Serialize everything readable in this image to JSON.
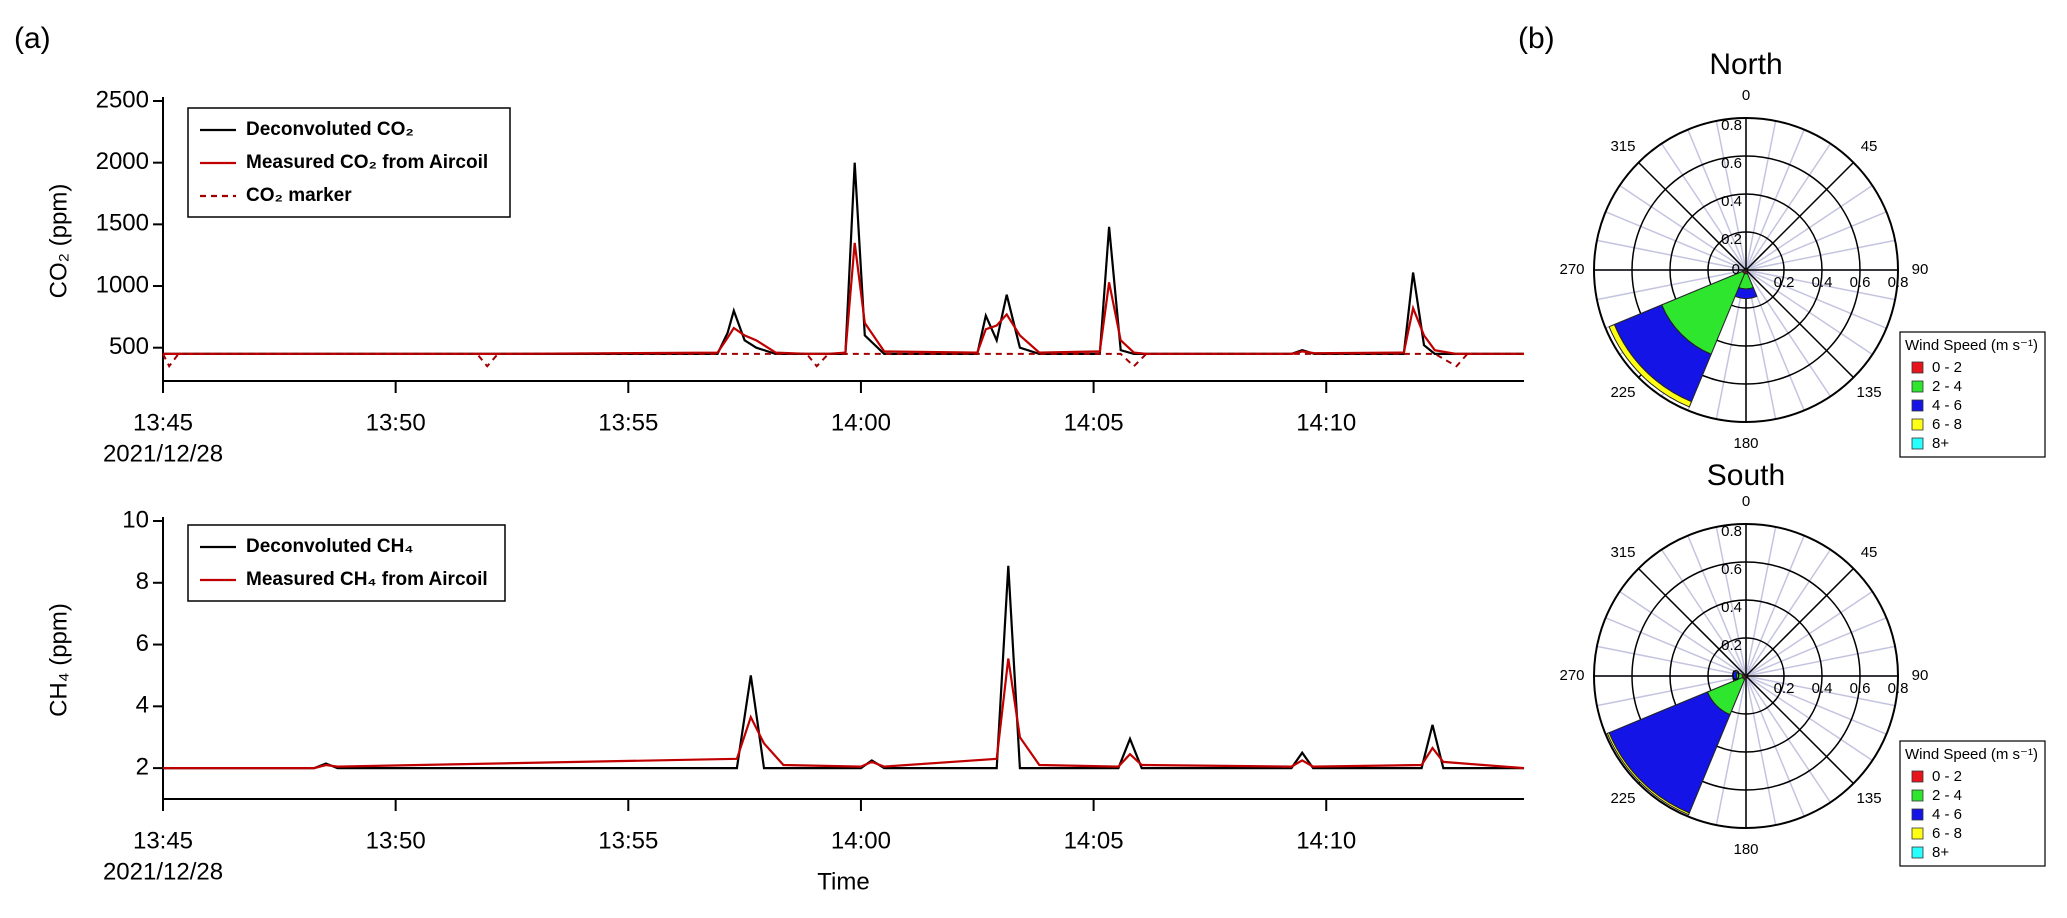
{
  "panel_labels": [
    "(a)",
    "(b)"
  ],
  "chart_data": [
    {
      "type": "line",
      "ylabel": "CO₂ (ppm)",
      "x_date_label": "2021/12/28",
      "xlim": [
        "13:45",
        "14:14:15"
      ],
      "xticks": [
        "13:45",
        "13:50",
        "13:55",
        "14:00",
        "14:05",
        "14:10"
      ],
      "ylim": [
        230,
        2500
      ],
      "yticks": [
        500,
        1000,
        1500,
        2000,
        2500
      ],
      "legend": "upper left",
      "x": [
        "13:45:00",
        "13:45:08",
        "13:45:20",
        "13:51:45",
        "13:51:58",
        "13:52:12",
        "13:56:55",
        "13:57:08",
        "13:57:16",
        "13:57:30",
        "13:57:45",
        "13:58:10",
        "13:58:50",
        "13:59:03",
        "13:59:18",
        "13:59:40",
        "13:59:52",
        "14:00:05",
        "14:00:30",
        "14:02:30",
        "14:02:41",
        "14:02:55",
        "14:03:08",
        "14:03:25",
        "14:03:50",
        "14:05:08",
        "14:05:20",
        "14:05:35",
        "14:05:52",
        "14:06:08",
        "14:09:15",
        "14:09:29",
        "14:09:45",
        "14:11:40",
        "14:11:52",
        "14:12:06",
        "14:12:20",
        "14:12:48",
        "14:13:02",
        "14:14:15"
      ],
      "series": [
        {
          "name": "Deconvoluted CO₂",
          "color": "#000000",
          "dashed": false,
          "values": [
            450,
            450,
            450,
            450,
            450,
            450,
            450,
            620,
            800,
            560,
            500,
            450,
            450,
            450,
            450,
            450,
            2000,
            600,
            450,
            450,
            760,
            560,
            930,
            500,
            450,
            450,
            1480,
            480,
            450,
            450,
            450,
            480,
            450,
            450,
            1110,
            520,
            450,
            450,
            450,
            450
          ]
        },
        {
          "name": "Measured CO₂ from Aircoil",
          "color": "#c00000",
          "dashed": false,
          "values": [
            450,
            450,
            450,
            450,
            450,
            450,
            460,
            580,
            660,
            600,
            560,
            460,
            450,
            450,
            450,
            460,
            1350,
            700,
            470,
            460,
            650,
            680,
            770,
            600,
            460,
            470,
            1030,
            560,
            460,
            450,
            450,
            470,
            455,
            460,
            820,
            600,
            480,
            450,
            450,
            450
          ]
        },
        {
          "name": "CO₂ marker",
          "color": "#a00000",
          "dashed": true,
          "values": [
            450,
            350,
            450,
            450,
            350,
            450,
            450,
            450,
            450,
            450,
            450,
            450,
            450,
            350,
            450,
            450,
            450,
            450,
            450,
            450,
            450,
            450,
            450,
            450,
            450,
            450,
            450,
            450,
            350,
            450,
            450,
            450,
            450,
            450,
            450,
            450,
            450,
            350,
            450,
            450
          ]
        }
      ]
    },
    {
      "type": "line",
      "ylabel": "CH₄ (ppm)",
      "xlabel": "Time",
      "x_date_label": "2021/12/28",
      "xlim": [
        "13:45",
        "14:14:15"
      ],
      "xticks": [
        "13:45",
        "13:50",
        "13:55",
        "14:00",
        "14:05",
        "14:10"
      ],
      "ylim": [
        1.0,
        10
      ],
      "yticks": [
        2,
        4,
        6,
        8,
        10
      ],
      "legend": "upper left",
      "x": [
        "13:45:00",
        "13:48:15",
        "13:48:30",
        "13:48:45",
        "13:57:20",
        "13:57:38",
        "13:57:55",
        "13:58:20",
        "14:00:00",
        "14:00:14",
        "14:00:30",
        "14:02:55",
        "14:03:10",
        "14:03:25",
        "14:03:50",
        "14:05:32",
        "14:05:47",
        "14:06:02",
        "14:09:15",
        "14:09:29",
        "14:09:43",
        "14:12:03",
        "14:12:17",
        "14:12:31",
        "14:14:15"
      ],
      "series": [
        {
          "name": "Deconvoluted CH₄",
          "color": "#000000",
          "dashed": false,
          "values": [
            2,
            2,
            2.15,
            2,
            2,
            5.0,
            2,
            2,
            2,
            2.25,
            2,
            2,
            8.55,
            2,
            2,
            2,
            2.95,
            2,
            2,
            2.5,
            2,
            2,
            3.4,
            2,
            2
          ]
        },
        {
          "name": "Measured CH₄ from Aircoil",
          "color": "#c00000",
          "dashed": false,
          "values": [
            2,
            2,
            2.1,
            2.05,
            2.3,
            3.65,
            2.8,
            2.1,
            2.05,
            2.2,
            2.05,
            2.3,
            5.55,
            3.0,
            2.1,
            2.05,
            2.45,
            2.1,
            2.05,
            2.25,
            2.05,
            2.1,
            2.65,
            2.2,
            2
          ]
        }
      ]
    },
    {
      "type": "windrose",
      "title": "North",
      "legend_title": "Wind Speed (m s⁻¹)",
      "rlim": [
        0,
        0.8
      ],
      "rticks": [
        0,
        0.2,
        0.4,
        0.6,
        0.8
      ],
      "angle_ticks": [
        0,
        45,
        90,
        135,
        180,
        225,
        270,
        315
      ],
      "directions": [
        180,
        225
      ],
      "series": [
        {
          "name": "0 - 2",
          "color": "#e8141c",
          "values": [
            0.02,
            0.02
          ]
        },
        {
          "name": "2 - 4",
          "color": "#2ee62e",
          "values": [
            0.08,
            0.46
          ]
        },
        {
          "name": "4 - 6",
          "color": "#1414e6",
          "values": [
            0.05,
            0.27
          ]
        },
        {
          "name": "6 - 8",
          "color": "#ffff14",
          "values": [
            0,
            0.03
          ]
        },
        {
          "name": "8+",
          "color": "#28ffff",
          "values": [
            0,
            0
          ]
        }
      ]
    },
    {
      "type": "windrose",
      "title": "South",
      "legend_title": "Wind Speed (m s⁻¹)",
      "rlim": [
        0,
        0.8
      ],
      "rticks": [
        0,
        0.2,
        0.4,
        0.6,
        0.8
      ],
      "angle_ticks": [
        0,
        45,
        90,
        135,
        180,
        225,
        270,
        315
      ],
      "directions": [
        225,
        270
      ],
      "series": [
        {
          "name": "0 - 2",
          "color": "#e8141c",
          "values": [
            0.02,
            0.02
          ]
        },
        {
          "name": "2 - 4",
          "color": "#2ee62e",
          "values": [
            0.2,
            0.03
          ]
        },
        {
          "name": "4 - 6",
          "color": "#1414e6",
          "values": [
            0.56,
            0.02
          ]
        },
        {
          "name": "6 - 8",
          "color": "#ffff14",
          "values": [
            0.01,
            0
          ]
        },
        {
          "name": "8+",
          "color": "#28ffff",
          "values": [
            0,
            0
          ]
        }
      ]
    }
  ]
}
